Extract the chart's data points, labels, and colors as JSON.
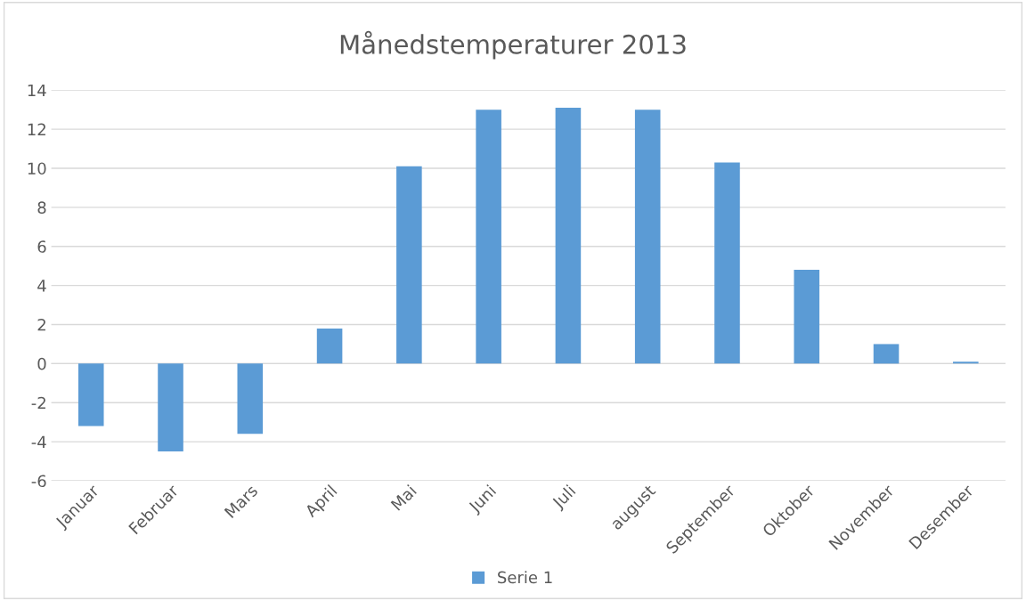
{
  "chart_data": {
    "type": "bar",
    "title": "Månedstemperaturer 2013",
    "categories": [
      "Januar",
      "Februar",
      "Mars",
      "April",
      "Mai",
      "Juni",
      "Juli",
      "august",
      "September",
      "Oktober",
      "November",
      "Desember"
    ],
    "series": [
      {
        "name": "Serie 1",
        "color": "#5b9bd5",
        "values": [
          -3.2,
          -4.5,
          -3.6,
          1.8,
          10.1,
          13.0,
          13.1,
          13.0,
          10.3,
          4.8,
          1.0,
          0.1
        ]
      }
    ],
    "ylim": [
      -6,
      14
    ],
    "yticks": [
      -6,
      -4,
      -2,
      0,
      2,
      4,
      6,
      8,
      10,
      12,
      14
    ],
    "grid": "y",
    "legend": "bottom"
  }
}
